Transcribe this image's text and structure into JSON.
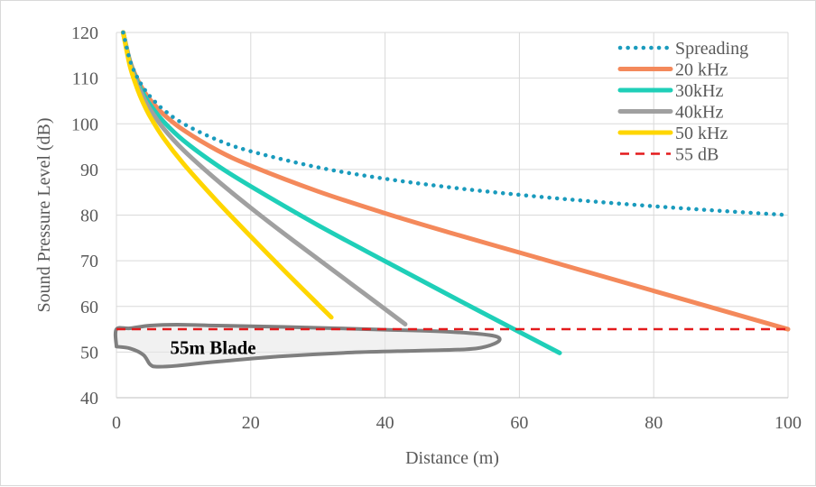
{
  "chart_data": {
    "type": "line",
    "title": "",
    "xlabel": "Distance (m)",
    "ylabel": "Sound Pressure Level (dB)",
    "xlim": [
      0,
      100
    ],
    "ylim": [
      40,
      120
    ],
    "xticks": [
      "0",
      "20",
      "40",
      "60",
      "80",
      "100"
    ],
    "yticks": [
      "40",
      "50",
      "60",
      "70",
      "80",
      "90",
      "100",
      "110",
      "120"
    ],
    "grid": true,
    "legend_position": "top-right",
    "series": [
      {
        "name": "Spreading",
        "color": "#1a9bbd",
        "style": "dotted",
        "x": [
          1,
          2,
          3,
          4,
          5,
          7,
          10,
          15,
          20,
          30,
          40,
          50,
          60,
          70,
          80,
          90,
          100
        ],
        "y": [
          120,
          113.98,
          110.46,
          107.96,
          106.02,
          103.1,
          100,
          96.48,
          93.98,
          90.46,
          87.96,
          86.02,
          84.44,
          83.1,
          81.94,
          80.92,
          80
        ]
      },
      {
        "name": "20 kHz",
        "color": "#f4895b",
        "style": "solid",
        "x": [
          1,
          2,
          3,
          4,
          5,
          7,
          10,
          15,
          20,
          30,
          40,
          50,
          60,
          70,
          80,
          90,
          100
        ],
        "y": [
          120,
          113.8,
          110.1,
          107.4,
          105.3,
          102.1,
          98.6,
          94.2,
          90.8,
          85.2,
          80.4,
          76.0,
          71.8,
          67.6,
          63.4,
          59.2,
          55.0
        ]
      },
      {
        "name": "30kHz",
        "color": "#1fcfb8",
        "style": "solid",
        "x": [
          1,
          2,
          3,
          4,
          5,
          7,
          10,
          15,
          20,
          30,
          40,
          50,
          60,
          66
        ],
        "y": [
          120,
          113.5,
          109.6,
          106.6,
          104.2,
          100.5,
          96.3,
          90.9,
          86.3,
          77.8,
          69.9,
          62.1,
          54.4,
          49.8
        ]
      },
      {
        "name": "40kHz",
        "color": "#a0a0a0",
        "style": "solid",
        "x": [
          1,
          2,
          3,
          4,
          5,
          7,
          10,
          15,
          20,
          25,
          30,
          35,
          40,
          43
        ],
        "y": [
          120,
          113.2,
          109.0,
          105.8,
          103.2,
          99.0,
          94.2,
          87.6,
          81.6,
          75.9,
          70.4,
          64.9,
          59.4,
          56.1
        ]
      },
      {
        "name": "50 kHz",
        "color": "#ffd600",
        "style": "solid",
        "x": [
          1,
          2,
          3,
          4,
          5,
          7,
          10,
          15,
          20,
          25,
          30,
          32
        ],
        "y": [
          120,
          112.7,
          108.1,
          104.5,
          101.6,
          96.9,
          91.2,
          83.0,
          75.3,
          67.8,
          60.5,
          57.6
        ]
      },
      {
        "name": "55 dB",
        "color": "#e31a1c",
        "style": "dashed",
        "x": [
          0,
          100
        ],
        "y": [
          55,
          55
        ]
      }
    ],
    "annotations": [
      {
        "text": "55m Blade",
        "shape": [
          [
            0,
            51.2
          ],
          [
            2,
            50.8
          ],
          [
            4,
            49.4
          ],
          [
            5,
            47.3
          ],
          [
            6,
            46.8
          ],
          [
            9,
            47.0
          ],
          [
            15,
            47.9
          ],
          [
            25,
            49.1
          ],
          [
            35,
            49.9
          ],
          [
            45,
            50.3
          ],
          [
            52,
            50.6
          ],
          [
            55,
            51.2
          ],
          [
            57,
            52.5
          ],
          [
            56,
            53.6
          ],
          [
            50,
            54.4
          ],
          [
            40,
            54.9
          ],
          [
            25,
            55.5
          ],
          [
            15,
            55.8
          ],
          [
            9,
            56.0
          ],
          [
            5,
            55.8
          ],
          [
            2,
            55.2
          ],
          [
            0,
            55.0
          ]
        ]
      }
    ]
  }
}
